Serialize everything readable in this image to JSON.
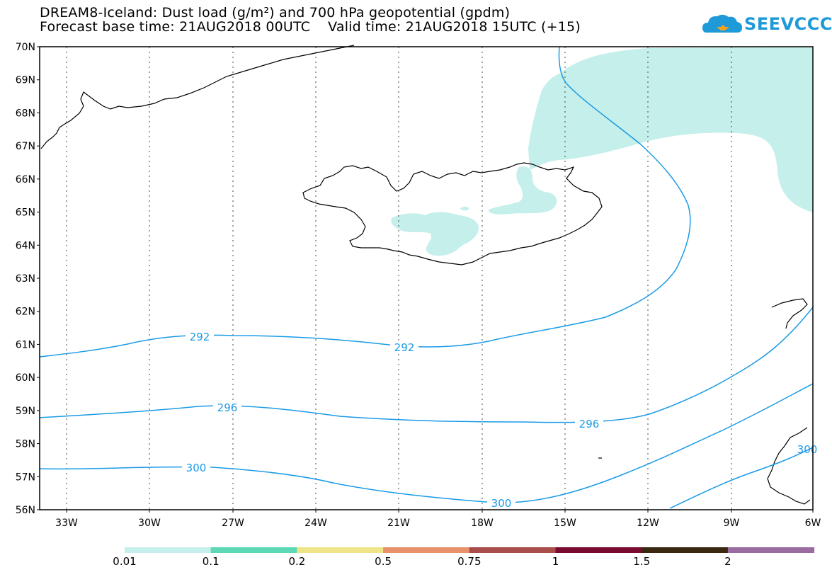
{
  "title": {
    "line1": "DREAM8-Iceland: Dust load (g/m²) and 700 hPa geopotential (gpdm)",
    "line2": "Forecast base time: 21AUG2018 00UTC    Valid time: 21AUG2018 15UTC (+15)"
  },
  "logo": {
    "text": "SEEVCCC",
    "color": "#1f9ad8"
  },
  "axes": {
    "lat_labels": [
      "70N",
      "69N",
      "68N",
      "67N",
      "66N",
      "65N",
      "64N",
      "63N",
      "62N",
      "61N",
      "60N",
      "59N",
      "58N",
      "57N",
      "56N"
    ],
    "lon_labels": [
      "33W",
      "30W",
      "27W",
      "24W",
      "21W",
      "18W",
      "15W",
      "12W",
      "9W",
      "6W"
    ]
  },
  "contours": {
    "color": "#1a9be6",
    "labels": [
      "292",
      "292",
      "296",
      "296",
      "300",
      "300",
      "300"
    ]
  },
  "dust_fill_color": "#c4efea",
  "colorbar": {
    "labels": [
      "0.01",
      "0.1",
      "0.2",
      "0.5",
      "0.75",
      "1",
      "1.5",
      "2"
    ],
    "colors": [
      "#c4efea",
      "#5cd8b4",
      "#f0e488",
      "#e8916a",
      "#a84d4b",
      "#7a0a30",
      "#3a2810",
      "#9a6ca0"
    ]
  }
}
